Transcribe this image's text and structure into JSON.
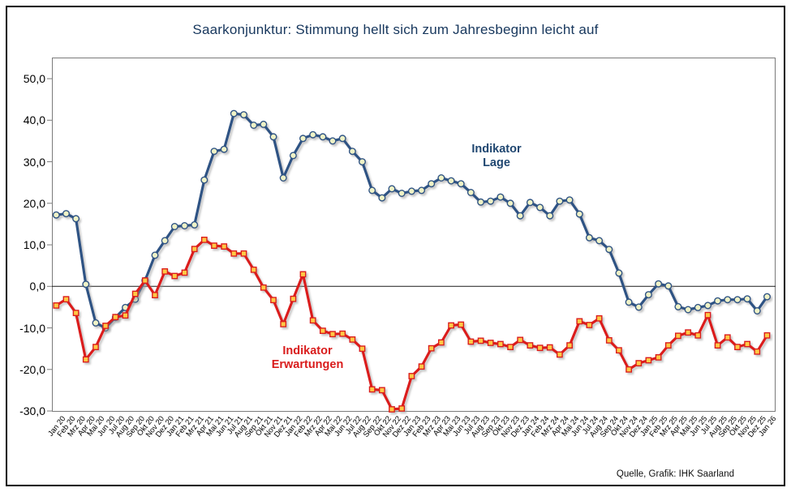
{
  "title": "Saarkonjunktur: Stimmung hellt sich zum Jahresbeginn leicht auf",
  "source_note": "Quelle, Grafik: IHK Saarland",
  "chart_data": {
    "type": "line",
    "title": "Saarkonjunktur: Stimmung hellt sich zum Jahresbeginn leicht auf",
    "xlabel": "",
    "ylabel": "",
    "ylim": [
      -30,
      50
    ],
    "grid": false,
    "zero_line": true,
    "legend_position": "inline-annotations",
    "yticks": [
      "50,0",
      "40,0",
      "30,0",
      "20,0",
      "10,0",
      "0,0",
      "-10,0",
      "-20,0",
      "-30,0"
    ],
    "categories": [
      "Jan 20",
      "Feb 20",
      "Mrz 20",
      "Apr 20",
      "Mai 20",
      "Jun 20",
      "Jul 20",
      "Aug 20",
      "Sep 20",
      "Okt 20",
      "Nov 20",
      "Dez 20",
      "Jan 21",
      "Feb 21",
      "Mrz 21",
      "Apr 21",
      "Mai 21",
      "Jun 21",
      "Jul 21",
      "Aug 21",
      "Sep 21",
      "Okt 21",
      "Nov 21",
      "Dez 21",
      "Jan 22",
      "Feb 22",
      "Mrz 22",
      "Apr 22",
      "Mai 22",
      "Jun 22",
      "Jul 22",
      "Aug 22",
      "Sep 22",
      "Okt 22",
      "Nov 22",
      "Dez 22",
      "Jan 23",
      "Feb 23",
      "Mrz 23",
      "Apr 23",
      "Mai 23",
      "Jun 23",
      "Jul 23",
      "Aug 23",
      "Sep 23",
      "Okt 23",
      "Nov 23",
      "Dez 23",
      "Jan 24",
      "Feb 24",
      "Mrz 24",
      "Apr 24",
      "Mai 24",
      "Jun 24",
      "Jul 24",
      "Aug 24",
      "Sep 24",
      "Okt 24",
      "Nov 24",
      "Dez 24",
      "Jan 25",
      "Feb 25",
      "Mrz 25",
      "Apr 25",
      "Mai 25",
      "Jun 25",
      "Jul 25",
      "Aug 25",
      "Sep 25",
      "Okt 25",
      "Nov 25",
      "Dez 25",
      "Jan 26"
    ],
    "series": [
      {
        "name": "Indikator Lage",
        "color": "#2F5384",
        "marker": "circle",
        "marker_fill": "#EFF2C6",
        "values": [
          17.2,
          17.5,
          16.3,
          0.5,
          -8.8,
          -10.0,
          -7.5,
          -5.1,
          -3.1,
          1.4,
          7.5,
          11.0,
          14.4,
          14.6,
          14.8,
          25.6,
          32.5,
          33.0,
          41.6,
          41.3,
          38.8,
          39.0,
          36.0,
          26.1,
          31.5,
          35.6,
          36.5,
          36.0,
          35.0,
          35.6,
          32.5,
          30.0,
          23.1,
          21.3,
          23.5,
          22.4,
          22.9,
          23.1,
          24.7,
          26.1,
          25.4,
          24.7,
          22.6,
          20.3,
          20.5,
          21.5,
          20.0,
          17.0,
          20.2,
          19.0,
          17.0,
          20.5,
          20.8,
          17.4,
          11.7,
          11.0,
          8.9,
          3.2,
          -3.8,
          -5.0,
          -2.0,
          0.6,
          0.1,
          -4.9,
          -5.6,
          -5.1,
          -4.6,
          -3.5,
          -3.2,
          -3.2,
          -3.0,
          -5.9,
          -2.5
        ]
      },
      {
        "name": "Indikator Erwartungen",
        "color": "#DB1F1F",
        "marker": "square",
        "marker_fill": "#FFC845",
        "values": [
          -4.6,
          -3.1,
          -6.4,
          -17.6,
          -14.6,
          -9.5,
          -7.4,
          -7.0,
          -1.8,
          1.4,
          -2.1,
          3.6,
          2.5,
          3.3,
          9.0,
          11.2,
          9.8,
          9.6,
          7.9,
          7.9,
          4.0,
          -0.3,
          -3.3,
          -9.1,
          -3.0,
          2.9,
          -8.2,
          -10.7,
          -11.5,
          -11.4,
          -12.8,
          -15.0,
          -24.8,
          -25.0,
          -29.6,
          -29.4,
          -21.6,
          -19.3,
          -14.9,
          -13.5,
          -9.4,
          -9.2,
          -13.3,
          -13.1,
          -13.6,
          -13.9,
          -14.6,
          -12.9,
          -14.2,
          -14.8,
          -14.7,
          -16.4,
          -14.2,
          -8.4,
          -9.3,
          -7.7,
          -13.0,
          -15.4,
          -20.0,
          -18.5,
          -17.8,
          -17.1,
          -14.2,
          -11.9,
          -11.1,
          -11.8,
          -6.9,
          -14.2,
          -12.3,
          -14.6,
          -13.9,
          -15.7,
          -11.8
        ]
      }
    ],
    "annotations": {
      "lage": {
        "line1": "Indikator",
        "line2": "Lage"
      },
      "erwartungen": {
        "line1": "Indikator",
        "line2": "Erwartungen"
      }
    }
  }
}
